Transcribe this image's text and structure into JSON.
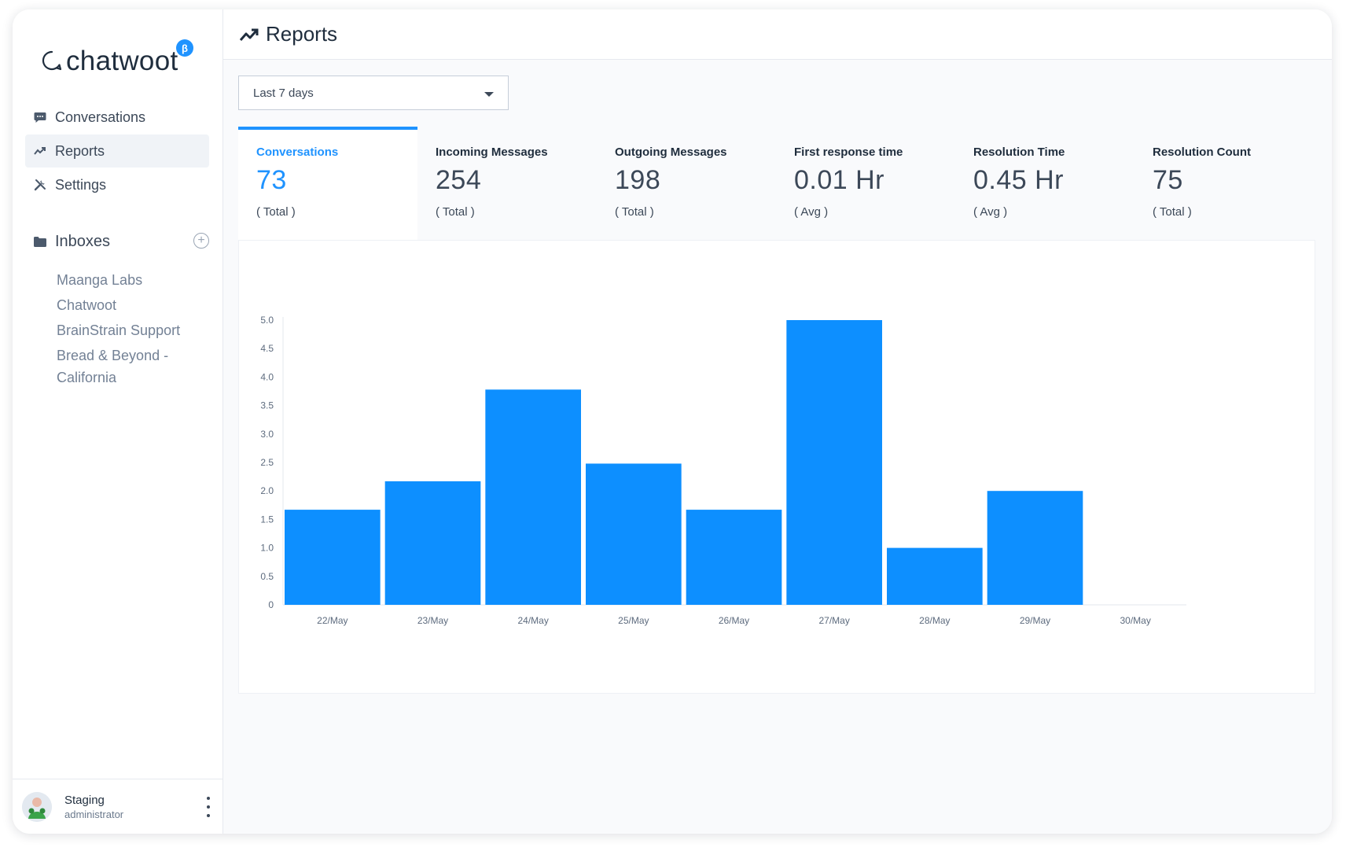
{
  "app": {
    "logo_text": "chatwoot",
    "beta_label": "β"
  },
  "sidebar": {
    "nav": [
      {
        "label": "Conversations",
        "icon": "chat-bubble-icon",
        "active": false
      },
      {
        "label": "Reports",
        "icon": "trend-line-icon",
        "active": true
      },
      {
        "label": "Settings",
        "icon": "tools-icon",
        "active": false
      }
    ],
    "inboxes_label": "Inboxes",
    "inboxes": [
      "Maanga Labs",
      "Chatwoot",
      "BrainStrain Support",
      "Bread & Beyond - California"
    ]
  },
  "profile": {
    "name": "Staging",
    "role": "administrator"
  },
  "header": {
    "title": "Reports",
    "icon": "trend-line-icon"
  },
  "date_filter": {
    "selected": "Last 7 days"
  },
  "metrics": [
    {
      "label": "Conversations",
      "value": "73",
      "desc": "( Total )",
      "active": true
    },
    {
      "label": "Incoming Messages",
      "value": "254",
      "desc": "( Total )",
      "active": false
    },
    {
      "label": "Outgoing Messages",
      "value": "198",
      "desc": "( Total )",
      "active": false
    },
    {
      "label": "First response time",
      "value": "0.01 Hr",
      "desc": "( Avg )",
      "active": false
    },
    {
      "label": "Resolution Time",
      "value": "0.45 Hr",
      "desc": "( Avg )",
      "active": false
    },
    {
      "label": "Resolution Count",
      "value": "75",
      "desc": "( Total )",
      "active": false
    }
  ],
  "colors": {
    "accent": "#1f93ff",
    "bar": "#0d8fff"
  },
  "chart_data": {
    "type": "bar",
    "categories": [
      "22/May",
      "23/May",
      "24/May",
      "25/May",
      "26/May",
      "27/May",
      "28/May",
      "29/May",
      "30/May"
    ],
    "values": [
      1.67,
      2.17,
      3.78,
      2.48,
      1.67,
      5.0,
      1.0,
      2.0,
      0
    ],
    "yticks": [
      "0",
      "0.5",
      "1.0",
      "1.5",
      "2.0",
      "2.5",
      "3.0",
      "3.5",
      "4.0",
      "4.5",
      "5.0"
    ],
    "ylim": [
      0,
      5
    ],
    "grid": false
  }
}
